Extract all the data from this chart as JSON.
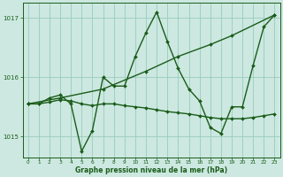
{
  "xlabel": "Graphe pression niveau de la mer (hPa)",
  "bg_color": "#cce8e0",
  "grid_color": "#99ccbb",
  "line_color": "#1a5c1a",
  "ylim": [
    1014.65,
    1017.25
  ],
  "xlim": [
    -0.5,
    23.5
  ],
  "yticks": [
    1015,
    1016,
    1017
  ],
  "ytick_labels": [
    "1015",
    "1016",
    "1017"
  ],
  "xticks": [
    0,
    1,
    2,
    3,
    4,
    5,
    6,
    7,
    8,
    9,
    10,
    11,
    12,
    13,
    14,
    15,
    16,
    17,
    18,
    19,
    20,
    21,
    22,
    23
  ],
  "series": [
    {
      "x": [
        0,
        1,
        2,
        3,
        4,
        5,
        6,
        7,
        8,
        9,
        10,
        11,
        12,
        13,
        14,
        15,
        16,
        17,
        18,
        19,
        20,
        21,
        22,
        23
      ],
      "y": [
        1015.55,
        1015.55,
        1015.65,
        1015.7,
        1015.55,
        1014.75,
        1015.1,
        1016.0,
        1015.85,
        1015.85,
        1016.35,
        1016.75,
        1017.1,
        1016.6,
        1016.15,
        1015.8,
        1015.6,
        1015.15,
        1015.05,
        1015.5,
        1015.5,
        1016.2,
        1016.85,
        1017.05
      ],
      "marker": "D",
      "markersize": 2.0,
      "linewidth": 1.0
    },
    {
      "x": [
        0,
        3,
        7,
        11,
        14,
        17,
        19,
        23
      ],
      "y": [
        1015.55,
        1015.65,
        1015.8,
        1016.1,
        1016.35,
        1016.55,
        1016.7,
        1017.05
      ],
      "marker": "D",
      "markersize": 2.0,
      "linewidth": 1.0
    },
    {
      "x": [
        0,
        1,
        2,
        3,
        4,
        5,
        6,
        7,
        8,
        9,
        10,
        11,
        12,
        13,
        14,
        15,
        16,
        17,
        18,
        19,
        20,
        21,
        22,
        23
      ],
      "y": [
        1015.55,
        1015.55,
        1015.58,
        1015.62,
        1015.6,
        1015.55,
        1015.52,
        1015.55,
        1015.55,
        1015.52,
        1015.5,
        1015.48,
        1015.45,
        1015.42,
        1015.4,
        1015.38,
        1015.35,
        1015.32,
        1015.3,
        1015.3,
        1015.3,
        1015.32,
        1015.35,
        1015.38
      ],
      "marker": "D",
      "markersize": 2.0,
      "linewidth": 1.0
    }
  ],
  "xlabel_fontsize": 5.5,
  "xtick_fontsize": 4.2,
  "ytick_fontsize": 5.0
}
